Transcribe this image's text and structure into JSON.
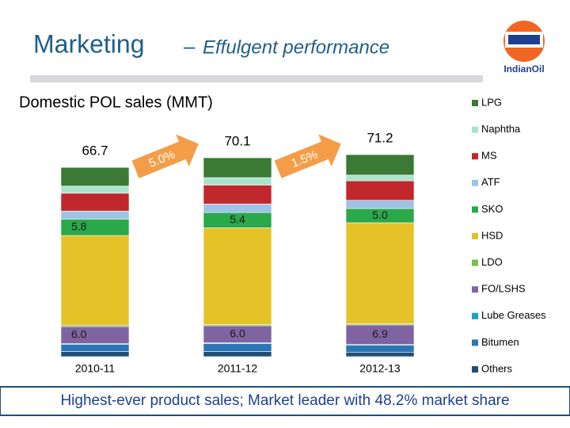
{
  "header": {
    "title_main": "Marketing",
    "title_dash": "–",
    "title_sub": "Effulgent performance",
    "logo": "IndianOil"
  },
  "chart_data": {
    "type": "stacked_bar",
    "title": "Domestic POL sales (MMT)",
    "categories": [
      "2010-11",
      "2011-12",
      "2012-13"
    ],
    "totals": [
      66.7,
      70.1,
      71.2
    ],
    "annotations": [
      "5.0%",
      "1.5%"
    ],
    "series": [
      {
        "name": "Others",
        "color": "#1f4e79",
        "values": [
          1.8,
          1.8,
          1.6
        ]
      },
      {
        "name": "Bitumen",
        "color": "#2e75b6",
        "values": [
          2.5,
          2.8,
          2.4
        ]
      },
      {
        "name": "Lube Greases",
        "color": "#17a5b8",
        "values": [
          0.3,
          0.3,
          0.3
        ]
      },
      {
        "name": "FO/LSHS",
        "color": "#8064a2",
        "values": [
          6.0,
          6.0,
          6.9
        ],
        "value_labels": [
          "6.0",
          "6.0",
          "6.9"
        ]
      },
      {
        "name": "LDO",
        "color": "#7cc04a",
        "values": [
          0.5,
          0.4,
          0.4
        ]
      },
      {
        "name": "HSD",
        "color": "#e6c229",
        "values": [
          31.6,
          34.1,
          35.6
        ]
      },
      {
        "name": "SKO",
        "color": "#2aa84a",
        "values": [
          5.8,
          5.4,
          5.0
        ],
        "value_labels": [
          "5.8",
          "5.4",
          "5.0"
        ]
      },
      {
        "name": "ATF",
        "color": "#9dc3e6",
        "values": [
          2.8,
          3.0,
          2.9
        ]
      },
      {
        "name": "MS",
        "color": "#c0282d",
        "values": [
          6.3,
          6.7,
          6.9
        ]
      },
      {
        "name": "Naphtha",
        "color": "#a9e3cc",
        "values": [
          2.5,
          2.6,
          2.0
        ]
      },
      {
        "name": "LPG",
        "color": "#3a7a34",
        "values": [
          6.6,
          7.0,
          7.2
        ]
      }
    ]
  },
  "footer": {
    "text": "Highest-ever product sales; Market leader with 48.2% market share"
  }
}
